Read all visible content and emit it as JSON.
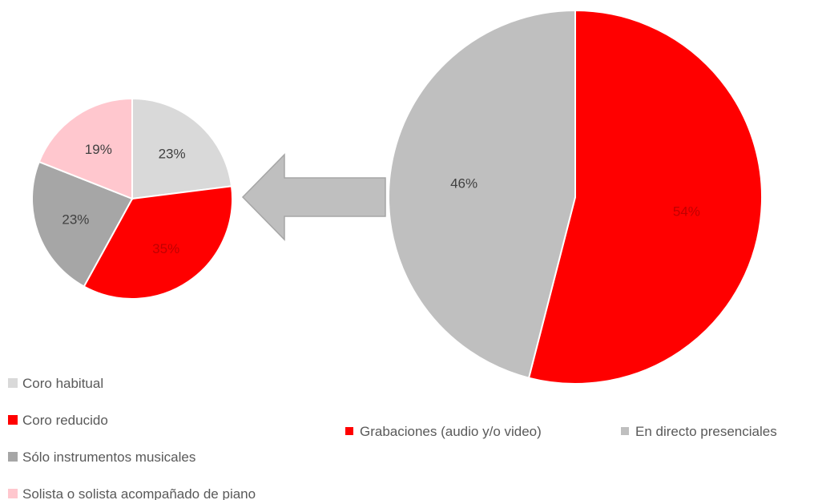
{
  "chart_data": [
    {
      "type": "pie",
      "categories": [
        "Grabaciones (audio y/o video)",
        "En directo presenciales"
      ],
      "values": [
        54,
        46
      ],
      "labels": [
        "54%",
        "46%"
      ],
      "colors": [
        "#ff0000",
        "#bfbfbf"
      ],
      "label_colors": [
        "#c00000",
        "#404040"
      ],
      "legend_position": "bottom"
    },
    {
      "type": "pie",
      "categories": [
        "Coro habitual",
        "Coro reducido",
        "Sólo instrumentos musicales",
        "Solista o solista acompañado de piano"
      ],
      "values": [
        23,
        35,
        23,
        19
      ],
      "labels": [
        "23%",
        "35%",
        "23%",
        "19%"
      ],
      "colors": [
        "#d9d9d9",
        "#ff0000",
        "#a6a6a6",
        "#ffc7ce"
      ],
      "label_colors": [
        "#404040",
        "#c00000",
        "#404040",
        "#404040"
      ],
      "legend_position": "bottom-left"
    }
  ],
  "arrow": {
    "color": "#bfbfbf",
    "stroke": "#a6a6a6",
    "direction": "left"
  }
}
